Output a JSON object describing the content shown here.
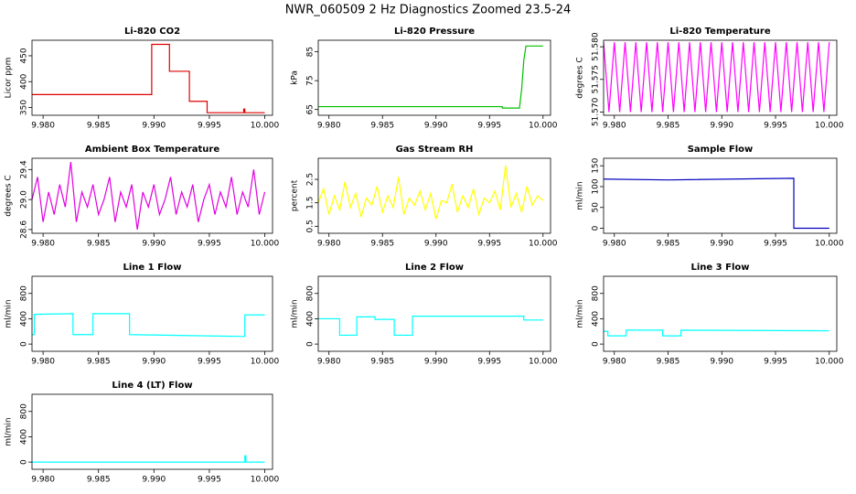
{
  "title": "NWR_060509  2 Hz Diagnostics Zoomed 23.5-24",
  "chart_data": [
    {
      "type": "line",
      "title": "Li-820 CO2",
      "ylabel": "Licor ppm",
      "color": "#e00000",
      "x": [
        9.979,
        9.9898,
        9.9898,
        9.9914,
        9.9914,
        9.9932,
        9.9932,
        9.9948,
        9.9948,
        9.9981,
        9.9981,
        9.9982,
        9.9982,
        10.0
      ],
      "values": [
        375,
        375,
        472,
        472,
        420,
        420,
        362,
        362,
        340,
        340,
        347,
        347,
        340,
        340
      ],
      "xlim": [
        9.979,
        10.0007
      ],
      "xticks": [
        {
          "value": 9.98,
          "label": "9.980"
        },
        9.985,
        {
          "value": 9.99,
          "label": "9.990"
        },
        9.995,
        {
          "value": 10,
          "label": "10.000"
        }
      ],
      "ylim": [
        335,
        480
      ],
      "yticks": [
        350,
        400,
        450
      ]
    },
    {
      "type": "line",
      "title": "Li-820 Pressure",
      "ylabel": "kPa",
      "color": "#00c000",
      "x": [
        9.979,
        9.9962,
        9.9962,
        9.9978,
        9.998,
        9.9982,
        9.9984,
        10.0
      ],
      "values": [
        66,
        66,
        65.5,
        65.5,
        72,
        82,
        87,
        87
      ],
      "xlim": [
        9.979,
        10.0007
      ],
      "xticks": [
        {
          "value": 9.98,
          "label": "9.980"
        },
        9.985,
        {
          "value": 9.99,
          "label": "9.990"
        },
        9.995,
        {
          "value": 10,
          "label": "10.000"
        }
      ],
      "ylim": [
        63,
        89
      ],
      "yticks": [
        65,
        75,
        85
      ]
    },
    {
      "type": "line",
      "title": "Li-820 Temperature",
      "ylabel": "degrees C",
      "color": "#ff00ff",
      "x": [
        9.979,
        9.9795,
        9.98,
        9.9805,
        9.981,
        9.9815,
        9.982,
        9.9825,
        9.983,
        9.9835,
        9.984,
        9.9845,
        9.985,
        9.9855,
        9.986,
        9.9865,
        9.987,
        9.9875,
        9.988,
        9.9885,
        9.989,
        9.9895,
        9.99,
        9.9905,
        9.991,
        9.9915,
        9.992,
        9.9925,
        9.993,
        9.9935,
        9.994,
        9.9945,
        9.995,
        9.9955,
        9.996,
        9.9965,
        9.997,
        9.9975,
        9.998,
        9.9985,
        9.999,
        9.9995,
        10.0
      ],
      "values": [
        51.5807,
        51.57,
        51.5807,
        51.57,
        51.5807,
        51.57,
        51.5807,
        51.57,
        51.5807,
        51.57,
        51.5807,
        51.57,
        51.5807,
        51.57,
        51.5807,
        51.57,
        51.5807,
        51.57,
        51.5807,
        51.57,
        51.5807,
        51.57,
        51.5807,
        51.57,
        51.5807,
        51.57,
        51.5807,
        51.57,
        51.5807,
        51.57,
        51.5807,
        51.57,
        51.5807,
        51.57,
        51.5807,
        51.57,
        51.5807,
        51.57,
        51.5807,
        51.57,
        51.5807,
        51.57,
        51.5807
      ],
      "xlim": [
        9.979,
        10.0007
      ],
      "xticks": [
        {
          "value": 9.98,
          "label": "9.980"
        },
        9.985,
        {
          "value": 9.99,
          "label": "9.990"
        },
        9.995,
        {
          "value": 10,
          "label": "10.000"
        }
      ],
      "ylim": [
        51.5695,
        51.581
      ],
      "yticks": [
        {
          "value": 51.57,
          "label": "51.570"
        },
        51.575,
        {
          "value": 51.58,
          "label": "51.580"
        }
      ]
    },
    {
      "type": "line",
      "title": "Ambient Box Temperature",
      "ylabel": "degrees C",
      "color": "#e000e0",
      "x": [
        9.979,
        9.9795,
        9.98,
        9.9805,
        9.981,
        9.9815,
        9.982,
        9.9825,
        9.983,
        9.9835,
        9.984,
        9.9845,
        9.985,
        9.9855,
        9.986,
        9.9865,
        9.987,
        9.9875,
        9.988,
        9.9885,
        9.989,
        9.9895,
        9.99,
        9.9905,
        9.991,
        9.9915,
        9.992,
        9.9925,
        9.993,
        9.9935,
        9.994,
        9.9945,
        9.995,
        9.9955,
        9.996,
        9.9965,
        9.997,
        9.9975,
        9.998,
        9.9985,
        9.999,
        9.9995,
        10.0
      ],
      "values": [
        29.0,
        29.3,
        28.7,
        29.1,
        28.8,
        29.2,
        28.9,
        29.5,
        28.7,
        29.1,
        28.9,
        29.2,
        28.8,
        29.0,
        29.3,
        28.7,
        29.1,
        28.9,
        29.2,
        28.6,
        29.1,
        28.9,
        29.2,
        28.8,
        29.0,
        29.3,
        28.8,
        29.1,
        28.9,
        29.2,
        28.7,
        29.0,
        29.2,
        28.8,
        29.1,
        28.9,
        29.3,
        28.8,
        29.1,
        28.9,
        29.4,
        28.8,
        29.1
      ],
      "xlim": [
        9.979,
        10.0007
      ],
      "xticks": [
        {
          "value": 9.98,
          "label": "9.980"
        },
        9.985,
        {
          "value": 9.99,
          "label": "9.990"
        },
        9.995,
        {
          "value": 10,
          "label": "10.000"
        }
      ],
      "ylim": [
        28.55,
        29.55
      ],
      "yticks": [
        28.6,
        {
          "value": 29,
          "label": "29.0"
        },
        29.4
      ]
    },
    {
      "type": "line",
      "title": "Gas Stream RH",
      "ylabel": "percent",
      "color": "#ffff00",
      "x": [
        9.979,
        9.9795,
        9.98,
        9.9805,
        9.981,
        9.9815,
        9.982,
        9.9825,
        9.983,
        9.9835,
        9.984,
        9.9845,
        9.985,
        9.9855,
        9.986,
        9.9865,
        9.987,
        9.9875,
        9.988,
        9.9885,
        9.989,
        9.9895,
        9.99,
        9.9905,
        9.991,
        9.9915,
        9.992,
        9.9925,
        9.993,
        9.9935,
        9.994,
        9.9945,
        9.995,
        9.9955,
        9.996,
        9.9965,
        9.997,
        9.9975,
        9.998,
        9.9985,
        9.999,
        9.9995,
        10.0
      ],
      "values": [
        1.5,
        2.1,
        1.0,
        1.8,
        1.2,
        2.4,
        1.3,
        1.9,
        0.9,
        1.7,
        1.4,
        2.2,
        1.1,
        1.8,
        1.3,
        2.6,
        1.0,
        1.7,
        1.4,
        2.0,
        1.2,
        1.9,
        0.8,
        1.6,
        1.5,
        2.3,
        1.1,
        1.8,
        1.3,
        2.1,
        1.0,
        1.7,
        1.5,
        2.0,
        1.2,
        3.1,
        1.3,
        1.9,
        1.1,
        2.2,
        1.4,
        1.8,
        1.6
      ],
      "xlim": [
        9.979,
        10.0007
      ],
      "xticks": [
        {
          "value": 9.98,
          "label": "9.980"
        },
        9.985,
        {
          "value": 9.99,
          "label": "9.990"
        },
        9.995,
        {
          "value": 10,
          "label": "10.000"
        }
      ],
      "ylim": [
        0.2,
        3.4
      ],
      "yticks": [
        0.5,
        1.5,
        2.5
      ]
    },
    {
      "type": "line",
      "title": "Sample Flow",
      "ylabel": "ml/min",
      "color": "#0000c0",
      "x": [
        9.979,
        9.985,
        9.9967,
        9.9967,
        10.0
      ],
      "values": [
        118,
        116,
        120,
        0,
        0
      ],
      "xlim": [
        9.979,
        10.0007
      ],
      "xticks": [
        {
          "value": 9.98,
          "label": "9.980"
        },
        9.985,
        {
          "value": 9.99,
          "label": "9.990"
        },
        9.995,
        {
          "value": 10,
          "label": "10.000"
        }
      ],
      "ylim": [
        -12,
        168
      ],
      "yticks": [
        0,
        50,
        100,
        150
      ]
    },
    {
      "type": "line",
      "title": "Line 1 Flow",
      "ylabel": "ml/min",
      "color": "#00ffff",
      "x": [
        9.979,
        9.9792,
        9.9792,
        9.9827,
        9.9827,
        9.9845,
        9.9845,
        9.9878,
        9.9878,
        9.9982,
        9.9982,
        10.0
      ],
      "values": [
        150,
        150,
        470,
        480,
        150,
        150,
        480,
        480,
        150,
        120,
        460,
        460
      ],
      "xlim": [
        9.979,
        10.0007
      ],
      "xticks": [
        {
          "value": 9.98,
          "label": "9.980"
        },
        9.985,
        {
          "value": 9.99,
          "label": "9.990"
        },
        9.995,
        {
          "value": 10,
          "label": "10.000"
        }
      ],
      "ylim": [
        -114,
        1071
      ],
      "yticks": [
        0,
        400,
        800
      ]
    },
    {
      "type": "line",
      "title": "Line 2 Flow",
      "ylabel": "ml/min",
      "color": "#00ffff",
      "x": [
        9.979,
        9.981,
        9.981,
        9.9826,
        9.9826,
        9.9843,
        9.9843,
        9.9861,
        9.9861,
        9.9878,
        9.9878,
        9.9982,
        9.9982,
        10.0
      ],
      "values": [
        400,
        400,
        140,
        140,
        430,
        430,
        390,
        390,
        140,
        140,
        440,
        440,
        380,
        380
      ],
      "xlim": [
        9.979,
        10.0007
      ],
      "xticks": [
        {
          "value": 9.98,
          "label": "9.980"
        },
        9.985,
        {
          "value": 9.99,
          "label": "9.990"
        },
        9.995,
        {
          "value": 10,
          "label": "10.000"
        }
      ],
      "ylim": [
        -114,
        1071
      ],
      "yticks": [
        0,
        400,
        800
      ]
    },
    {
      "type": "line",
      "title": "Line 3 Flow",
      "ylabel": "ml/min",
      "color": "#00ffff",
      "x": [
        9.979,
        9.9794,
        9.9794,
        9.9811,
        9.9811,
        9.9845,
        9.9845,
        9.9862,
        9.9862,
        10.0
      ],
      "values": [
        200,
        200,
        130,
        130,
        220,
        220,
        130,
        130,
        220,
        210
      ],
      "xlim": [
        9.979,
        10.0007
      ],
      "xticks": [
        {
          "value": 9.98,
          "label": "9.980"
        },
        9.985,
        {
          "value": 9.99,
          "label": "9.990"
        },
        9.995,
        {
          "value": 10,
          "label": "10.000"
        }
      ],
      "ylim": [
        -114,
        1071
      ],
      "yticks": [
        0,
        400,
        800
      ]
    },
    {
      "type": "line",
      "title": "Line 4 (LT) Flow",
      "ylabel": "ml/min",
      "color": "#00ffff",
      "x": [
        9.979,
        9.9982,
        9.9982,
        9.9983,
        9.9983,
        10.0
      ],
      "values": [
        0,
        0,
        100,
        100,
        0,
        0
      ],
      "xlim": [
        9.979,
        10.0007
      ],
      "xticks": [
        {
          "value": 9.98,
          "label": "9.980"
        },
        9.985,
        {
          "value": 9.99,
          "label": "9.990"
        },
        9.995,
        {
          "value": 10,
          "label": "10.000"
        }
      ],
      "ylim": [
        -114,
        1071
      ],
      "yticks": [
        0,
        400,
        800
      ]
    }
  ]
}
